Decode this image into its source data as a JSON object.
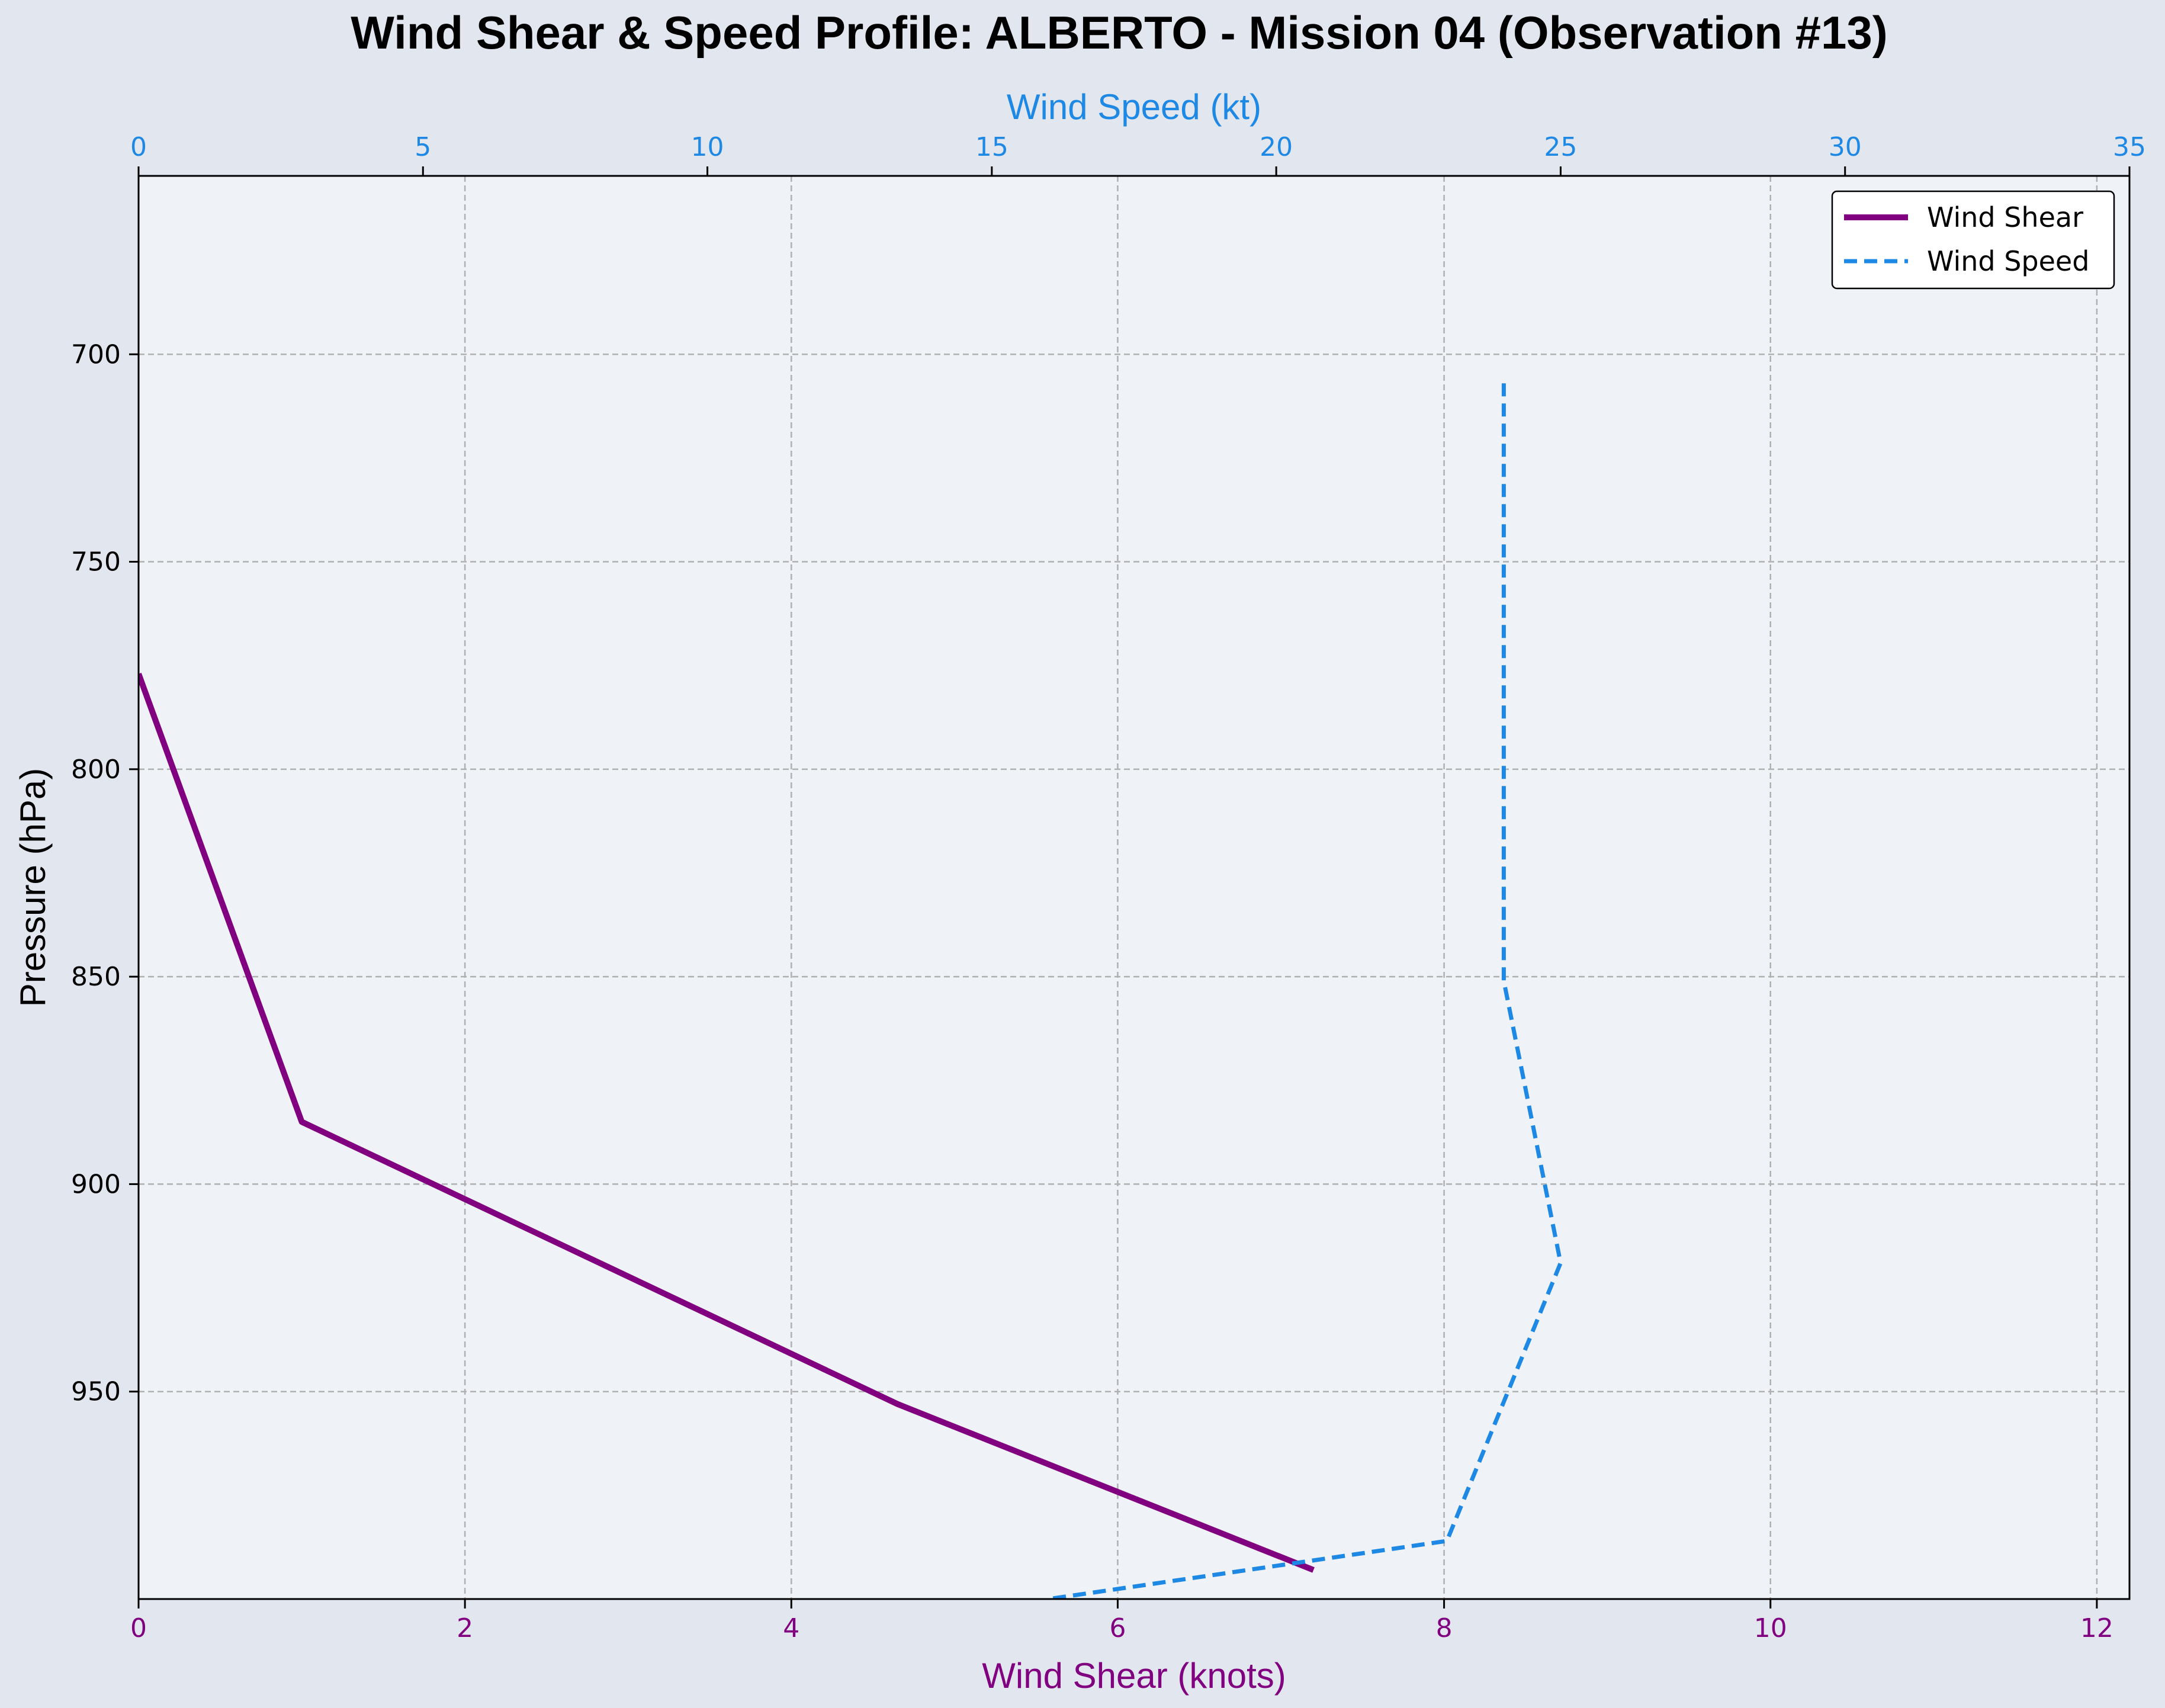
{
  "chart_data": {
    "type": "line",
    "title": "Wind Shear & Speed Profile: ALBERTO - Mission 04 (Observation #13)",
    "ylabel": "Pressure (hPa)",
    "ylim": [
      1000,
      657
    ],
    "y_inverted": true,
    "yticks": [
      700,
      750,
      800,
      850,
      900,
      950
    ],
    "grid": true,
    "legend_position": "top-right",
    "bottom_axis": {
      "label": "Wind Shear (knots)",
      "xlim": [
        0,
        12.2
      ],
      "ticks": [
        0,
        2,
        4,
        6,
        8,
        10,
        12
      ],
      "color": "#800080"
    },
    "top_axis": {
      "label": "Wind Speed (kt)",
      "xlim": [
        0,
        35
      ],
      "ticks": [
        0,
        5,
        10,
        15,
        20,
        25,
        30,
        35
      ],
      "color": "#1e88e5"
    },
    "series": [
      {
        "name": "Wind Shear",
        "axis": "bottom",
        "color": "#800080",
        "style": "solid",
        "points": [
          {
            "x": 0.0,
            "y": 777
          },
          {
            "x": 1.0,
            "y": 885
          },
          {
            "x": 4.65,
            "y": 953
          },
          {
            "x": 7.2,
            "y": 993
          }
        ]
      },
      {
        "name": "Wind Speed",
        "axis": "top",
        "color": "#1e88e5",
        "style": "dashed",
        "points": [
          {
            "x": 24.0,
            "y": 707
          },
          {
            "x": 24.0,
            "y": 851
          },
          {
            "x": 25.0,
            "y": 919
          },
          {
            "x": 23.0,
            "y": 986
          },
          {
            "x": 16.0,
            "y": 1000
          }
        ]
      }
    ]
  }
}
